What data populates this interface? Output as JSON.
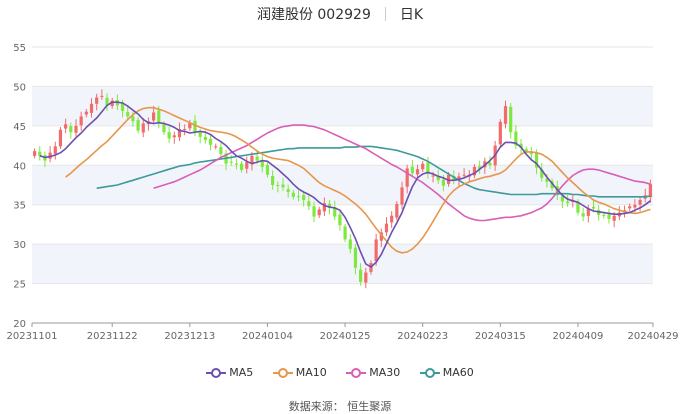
{
  "header": {
    "name": "润建股份 002929",
    "period": "日K"
  },
  "source": "数据来源： 恒生聚源",
  "colors": {
    "up": "#f26b6b",
    "down": "#7ee83f",
    "MA5": "#6c4fb0",
    "MA10": "#e8964a",
    "MA30": "#d85fb6",
    "MA60": "#3d9a9a",
    "band": "#f2f4fb",
    "grid": "#e6e6e6",
    "axis": "#999999"
  },
  "chart_data": {
    "type": "candlestick",
    "title": "润建股份 002929 日K",
    "ylim": [
      20,
      55
    ],
    "yticks": [
      20,
      25,
      30,
      35,
      40,
      45,
      50,
      55
    ],
    "xtick_labels": [
      "20231101",
      "20231122",
      "20231213",
      "20240104",
      "20240125",
      "20240223",
      "20240315",
      "20240409",
      "20240429"
    ],
    "xtick_index": [
      0,
      15,
      30,
      45,
      60,
      75,
      90,
      105,
      119
    ],
    "n_days": 120,
    "legend": [
      "MA5",
      "MA10",
      "MA30",
      "MA60"
    ],
    "legend_position": "bottom",
    "close": [
      41.8,
      41.2,
      40.6,
      41.6,
      42.4,
      44.5,
      45.2,
      44.2,
      45.0,
      46.2,
      46.8,
      47.8,
      48.6,
      48.8,
      47.6,
      48.2,
      47.6,
      46.9,
      46.2,
      45.6,
      44.4,
      45.3,
      45.6,
      46.7,
      45.4,
      44.2,
      43.4,
      43.8,
      44.6,
      44.6,
      45.4,
      44.3,
      43.6,
      43.2,
      42.6,
      42.4,
      41.4,
      40.2,
      40.4,
      40.2,
      39.4,
      40.4,
      41.2,
      40.6,
      39.8,
      38.8,
      37.5,
      37.4,
      37.2,
      36.6,
      36.0,
      36.0,
      35.6,
      34.8,
      33.5,
      34.4,
      35.2,
      34.6,
      33.5,
      32.4,
      30.6,
      29.4,
      27.0,
      25.2,
      26.4,
      27.6,
      30.6,
      31.5,
      32.6,
      33.6,
      35.1,
      37.2,
      39.6,
      39.0,
      39.5,
      40.2,
      38.9,
      38.7,
      38.1,
      37.4,
      38.8,
      38.2,
      38.6,
      38.8,
      38.8,
      39.8,
      39.5,
      40.5,
      40.0,
      42.5,
      45.5,
      47.5,
      44.2,
      42.5,
      42.2,
      41.6,
      41.4,
      39.7,
      38.4,
      37.9,
      37.1,
      36.2,
      35.4,
      35.2,
      35.6,
      34.0,
      33.5,
      34.5,
      34.5,
      33.7,
      33.6,
      33.2,
      33.6,
      34.0,
      34.3,
      34.8,
      35.0,
      35.6,
      36.2,
      37.6
    ],
    "MA5": [
      41.2,
      41.0,
      41.1,
      41.3,
      41.6,
      42.1,
      42.8,
      43.5,
      44.1,
      44.8,
      45.4,
      46.0,
      46.8,
      47.6,
      48.0,
      48.0,
      47.9,
      47.5,
      47.0,
      46.5,
      45.8,
      45.4,
      45.3,
      45.4,
      45.3,
      45.1,
      44.8,
      44.4,
      44.3,
      44.1,
      44.2,
      44.3,
      44.2,
      43.9,
      43.4,
      43.0,
      42.5,
      41.8,
      41.2,
      40.9,
      40.5,
      40.2,
      40.4,
      40.6,
      40.5,
      40.0,
      39.5,
      38.9,
      38.3,
      37.6,
      37.0,
      36.6,
      36.3,
      35.9,
      35.3,
      34.9,
      34.7,
      34.6,
      34.3,
      33.4,
      32.1,
      30.7,
      29.0,
      27.5,
      27.1,
      27.7,
      28.7,
      30.1,
      31.5,
      32.7,
      34.0,
      35.7,
      37.3,
      38.4,
      38.9,
      39.1,
      38.9,
      38.6,
      38.4,
      38.1,
      38.1,
      38.2,
      38.4,
      38.7,
      39.0,
      39.5,
      40.0,
      40.6,
      41.3,
      42.3,
      42.9,
      42.9,
      42.8,
      42.3,
      41.4,
      40.7,
      40.2,
      39.4,
      38.5,
      37.7,
      36.9,
      36.2,
      35.7,
      35.5,
      35.3,
      34.9,
      34.5,
      34.2,
      34.1,
      34.0,
      33.9,
      33.8,
      33.8,
      33.9,
      34.0,
      34.3,
      34.6,
      35.0,
      35.5
    ],
    "MA10": [
      38.5,
      39.0,
      39.6,
      40.2,
      40.7,
      41.3,
      41.9,
      42.5,
      43.0,
      43.7,
      44.4,
      45.1,
      45.8,
      46.4,
      46.9,
      47.2,
      47.3,
      47.3,
      47.1,
      46.9,
      46.6,
      46.3,
      46.0,
      45.7,
      45.4,
      45.1,
      44.8,
      44.6,
      44.4,
      44.3,
      44.2,
      44.1,
      43.9,
      43.6,
      43.2,
      42.8,
      42.3,
      41.8,
      41.4,
      41.1,
      40.9,
      40.8,
      40.7,
      40.6,
      40.3,
      40.0,
      39.6,
      39.0,
      38.4,
      37.8,
      37.4,
      37.1,
      36.8,
      36.5,
      36.1,
      35.6,
      35.1,
      34.5,
      33.8,
      32.9,
      32.0,
      31.2,
      30.4,
      29.6,
      29.1,
      28.9,
      29.0,
      29.4,
      30.0,
      30.8,
      31.8,
      32.9,
      34.0,
      35.1,
      36.1,
      36.8,
      37.3,
      37.6,
      37.9,
      38.1,
      38.3,
      38.5,
      38.6,
      38.8,
      39.0,
      39.4,
      40.1,
      40.8,
      41.4,
      41.7,
      41.7,
      41.6,
      41.4,
      41.0,
      40.5,
      39.8,
      39.1,
      38.4,
      37.8,
      37.2,
      36.6,
      36.1,
      35.6,
      35.3,
      35.1,
      34.8,
      34.5,
      34.3,
      34.1,
      34.0,
      33.9,
      34.0,
      34.2,
      34.4
    ],
    "MA30": [
      37.1,
      37.3,
      37.5,
      37.7,
      37.9,
      38.2,
      38.5,
      38.8,
      39.1,
      39.4,
      39.8,
      40.2,
      40.6,
      41.0,
      41.3,
      41.6,
      41.9,
      42.2,
      42.5,
      42.9,
      43.3,
      43.7,
      44.1,
      44.4,
      44.7,
      44.9,
      45.0,
      45.1,
      45.1,
      45.1,
      45.0,
      44.9,
      44.7,
      44.5,
      44.2,
      43.9,
      43.6,
      43.3,
      43.0,
      42.7,
      42.4,
      42.1,
      41.7,
      41.3,
      40.9,
      40.5,
      40.1,
      39.8,
      39.4,
      39.0,
      38.6,
      38.2,
      37.8,
      37.3,
      36.8,
      36.3,
      35.7,
      35.1,
      34.6,
      34.1,
      33.6,
      33.3,
      33.1,
      33.0,
      33.0,
      33.1,
      33.2,
      33.3,
      33.4,
      33.4,
      33.5,
      33.6,
      33.8,
      34.0,
      34.3,
      34.6,
      35.1,
      35.8,
      36.6,
      37.4,
      38.1,
      38.7,
      39.1,
      39.4,
      39.5,
      39.5,
      39.4,
      39.2,
      39.0,
      38.8,
      38.6,
      38.4,
      38.2,
      38.0,
      37.9,
      37.8,
      37.6
    ],
    "MA60": [
      37.1,
      37.2,
      37.3,
      37.4,
      37.5,
      37.7,
      37.9,
      38.1,
      38.3,
      38.5,
      38.7,
      38.9,
      39.1,
      39.3,
      39.5,
      39.7,
      39.9,
      40.0,
      40.1,
      40.3,
      40.4,
      40.5,
      40.6,
      40.7,
      40.8,
      40.9,
      41.0,
      41.1,
      41.2,
      41.3,
      41.4,
      41.5,
      41.6,
      41.7,
      41.8,
      41.9,
      42.0,
      42.1,
      42.1,
      42.2,
      42.2,
      42.2,
      42.2,
      42.2,
      42.2,
      42.2,
      42.2,
      42.2,
      42.3,
      42.3,
      42.3,
      42.4,
      42.4,
      42.4,
      42.3,
      42.2,
      42.1,
      42.0,
      41.9,
      41.7,
      41.5,
      41.3,
      41.1,
      40.8,
      40.5,
      40.1,
      39.7,
      39.3,
      38.9,
      38.5,
      38.1,
      37.7,
      37.4,
      37.1,
      36.9,
      36.8,
      36.7,
      36.6,
      36.5,
      36.4,
      36.3,
      36.3,
      36.3,
      36.3,
      36.3,
      36.3,
      36.4,
      36.4,
      36.4,
      36.4,
      36.4,
      36.4,
      36.3,
      36.3,
      36.2,
      36.1,
      36.1,
      36.0,
      36.0,
      36.0,
      36.0,
      36.0,
      36.0,
      36.0,
      36.0,
      36.0,
      36.0,
      36.1
    ],
    "MA60_start": 12
  }
}
